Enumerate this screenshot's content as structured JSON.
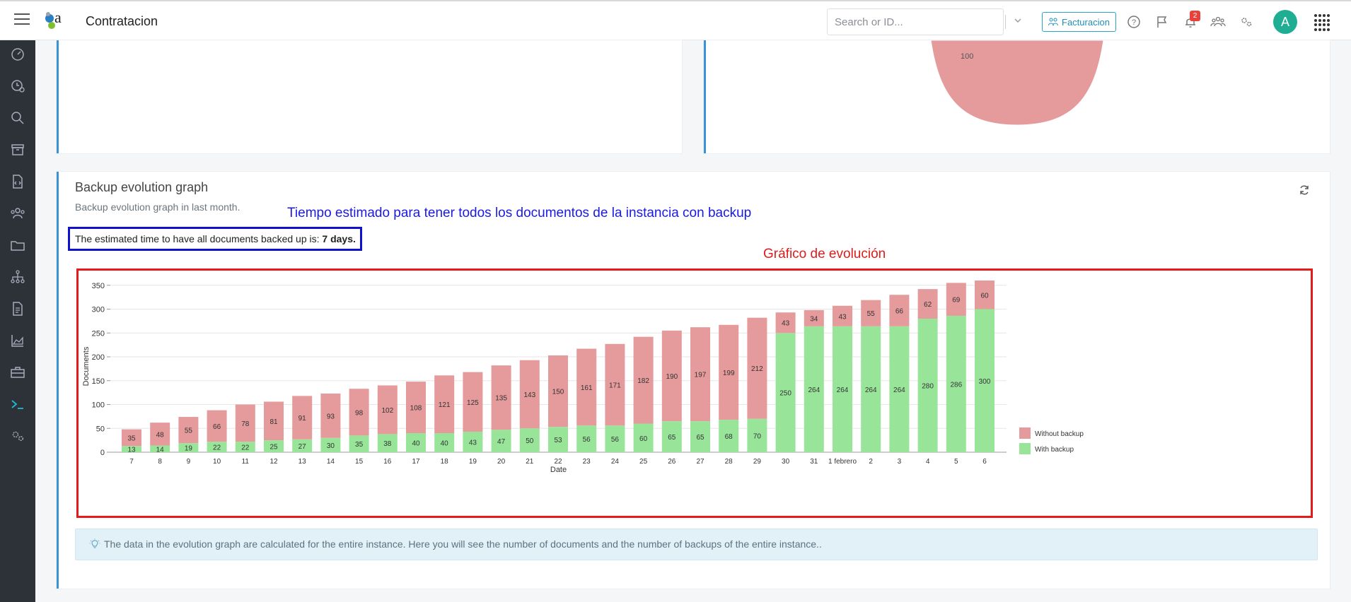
{
  "header": {
    "app_title": "Contratacion",
    "search_placeholder": "Search or ID...",
    "facturacion_label": "Facturacion",
    "notification_count": "2",
    "avatar_initial": "A"
  },
  "top_card": {
    "pie_label": "100"
  },
  "graph_card": {
    "title": "Backup evolution graph",
    "subtitle": "Backup evolution graph in last month.",
    "estimate_prefix": "The estimated time to have all documents backed up is: ",
    "estimate_value": "7 days.",
    "info_text": "The data in the evolution graph are calculated for the entire instance. Here you will see the number of documents and the number of backups of the entire instance..",
    "annotation_blue": "Tiempo estimado para tener todos los documentos de la instancia con backup",
    "annotation_red": "Gráfico de evolución"
  },
  "chart_data": {
    "type": "bar",
    "stacked": true,
    "xlabel": "Date",
    "ylabel": "Documents",
    "ylim": [
      0,
      360
    ],
    "yticks": [
      0,
      50,
      100,
      150,
      200,
      250,
      300,
      350
    ],
    "grid": true,
    "legend_position": "bottom-right",
    "categories": [
      "7",
      "8",
      "9",
      "10",
      "11",
      "12",
      "13",
      "14",
      "15",
      "16",
      "17",
      "18",
      "19",
      "20",
      "21",
      "22",
      "23",
      "24",
      "25",
      "26",
      "27",
      "28",
      "29",
      "30",
      "31",
      "1 febrero",
      "2",
      "3",
      "4",
      "5",
      "6"
    ],
    "series": [
      {
        "name": "With backup",
        "color": "#98e59a",
        "values": [
          13,
          14,
          19,
          22,
          22,
          25,
          27,
          30,
          35,
          38,
          40,
          40,
          43,
          47,
          50,
          53,
          56,
          56,
          60,
          65,
          65,
          68,
          70,
          250,
          264,
          264,
          264,
          264,
          280,
          286,
          300
        ]
      },
      {
        "name": "Without backup",
        "color": "#e59a9b",
        "values": [
          35,
          48,
          55,
          66,
          78,
          81,
          91,
          93,
          98,
          102,
          108,
          121,
          125,
          135,
          143,
          150,
          161,
          171,
          182,
          190,
          197,
          199,
          212,
          43,
          34,
          43,
          55,
          66,
          62,
          69,
          60
        ]
      }
    ]
  }
}
